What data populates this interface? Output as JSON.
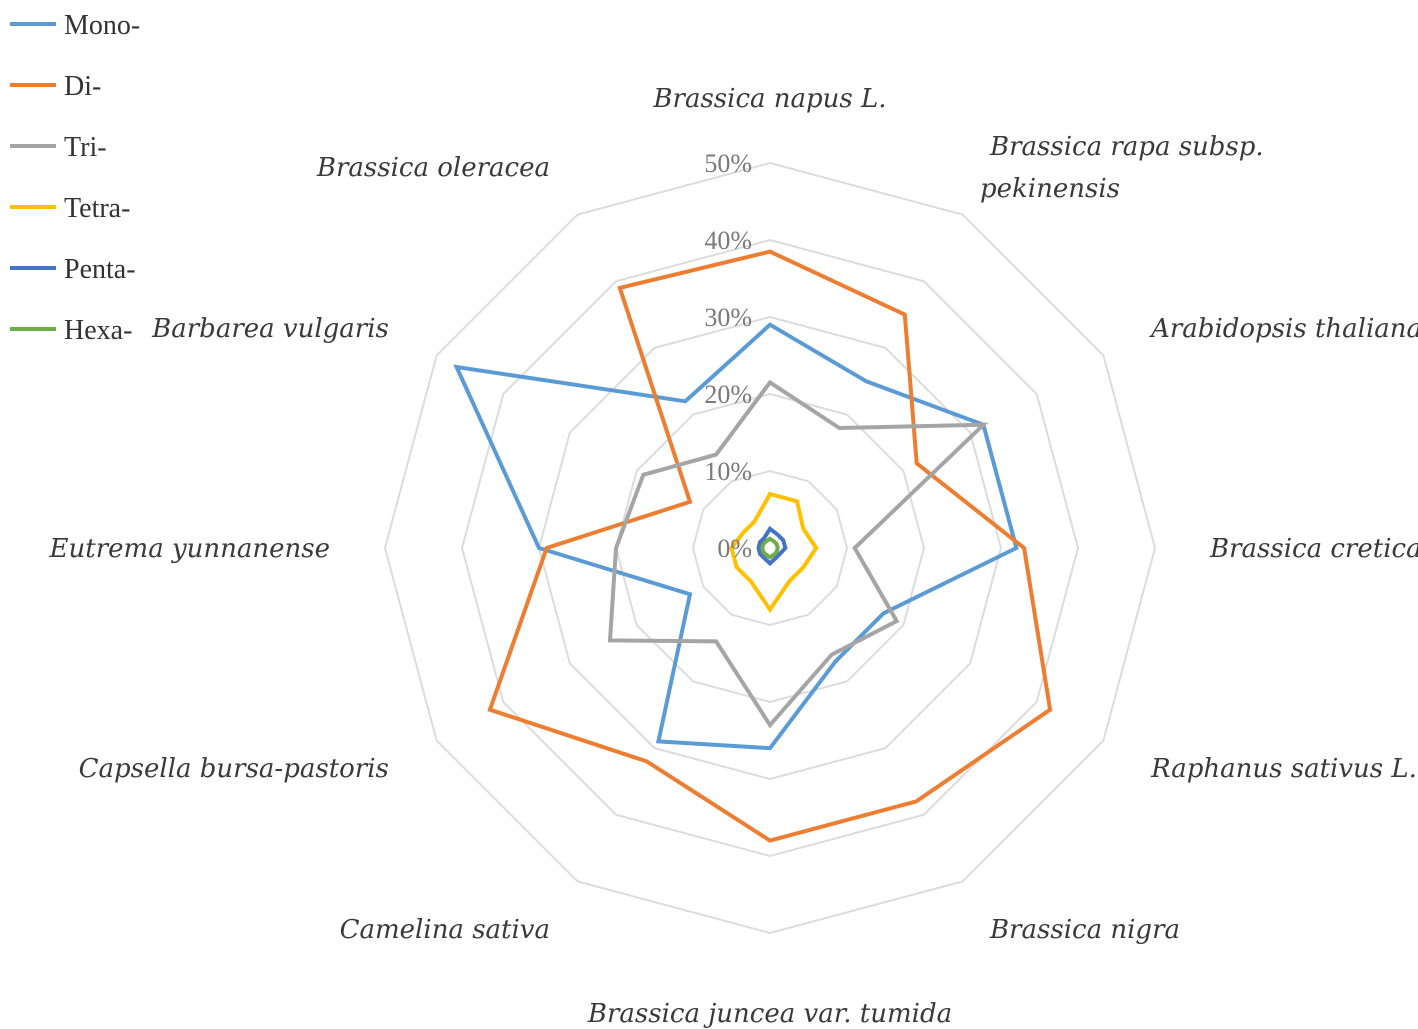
{
  "chart_data": {
    "type": "radar",
    "title": "",
    "categories": [
      "Brassica napus L.",
      "Brassica rapa subsp. pekinensis",
      "Arabidopsis thaliana (L.)",
      "Brassica cretica",
      "Raphanus sativus L.",
      "Brassica nigra",
      "Brassica juncea var. tumida",
      "Camelina sativa",
      "Capsella bursa-pastoris",
      "Eutrema yunnanense",
      "Barbarea vulgaris",
      "Brassica oleracea"
    ],
    "rlim": [
      0,
      50
    ],
    "ticks": [
      "0%",
      "10%",
      "20%",
      "30%",
      "40%",
      "50%"
    ],
    "legend_position": "top-left",
    "series": [
      {
        "name": "Mono-",
        "color": "#5b9bd5",
        "values": [
          29,
          25,
          32,
          32,
          17,
          17,
          26,
          29,
          12,
          30,
          47,
          22
        ]
      },
      {
        "name": "Di-",
        "color": "#ed7d31",
        "values": [
          38.5,
          35,
          22,
          33,
          42,
          38,
          38,
          32,
          42,
          29,
          12,
          39
        ]
      },
      {
        "name": "Tri-",
        "color": "#a5a5a5",
        "values": [
          21.5,
          18,
          32,
          11,
          19,
          16,
          23,
          14,
          24,
          20,
          19,
          14
        ]
      },
      {
        "name": "Tetra-",
        "color": "#ffc000",
        "values": [
          7,
          7,
          5,
          6,
          5,
          5,
          8,
          5,
          5,
          5,
          4,
          4
        ]
      },
      {
        "name": "Penta-",
        "color": "#4472c4",
        "values": [
          2.5,
          2,
          2,
          2,
          1.5,
          1.5,
          2,
          1.5,
          1.5,
          1.5,
          1.5,
          1.5
        ]
      },
      {
        "name": "Hexa-",
        "color": "#70ad47",
        "values": [
          1.2,
          1,
          1,
          1,
          1,
          1,
          1.2,
          1,
          1,
          1,
          1,
          1
        ]
      }
    ]
  }
}
